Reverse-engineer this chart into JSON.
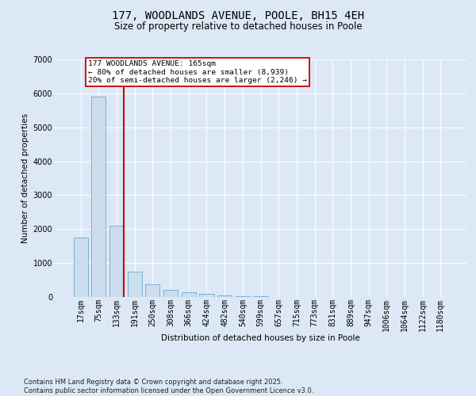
{
  "title_line1": "177, WOODLANDS AVENUE, POOLE, BH15 4EH",
  "title_line2": "Size of property relative to detached houses in Poole",
  "xlabel": "Distribution of detached houses by size in Poole",
  "ylabel": "Number of detached properties",
  "categories": [
    "17sqm",
    "75sqm",
    "133sqm",
    "191sqm",
    "250sqm",
    "308sqm",
    "366sqm",
    "424sqm",
    "482sqm",
    "540sqm",
    "599sqm",
    "657sqm",
    "715sqm",
    "773sqm",
    "831sqm",
    "889sqm",
    "947sqm",
    "1006sqm",
    "1064sqm",
    "1122sqm",
    "1180sqm"
  ],
  "values": [
    1750,
    5900,
    2100,
    750,
    380,
    210,
    140,
    95,
    55,
    28,
    12,
    7,
    4,
    3,
    2,
    1,
    1,
    1,
    0,
    0,
    0
  ],
  "bar_color": "#ccdded",
  "bar_edge_color": "#6aacce",
  "vline_color": "#cc0000",
  "annotation_text": "177 WOODLANDS AVENUE: 165sqm\n← 80% of detached houses are smaller (8,939)\n20% of semi-detached houses are larger (2,246) →",
  "annotation_box_color": "#ffffff",
  "annotation_box_edge": "#cc0000",
  "ylim": [
    0,
    7000
  ],
  "yticks": [
    0,
    1000,
    2000,
    3000,
    4000,
    5000,
    6000,
    7000
  ],
  "bg_color": "#dce8f5",
  "plot_bg_color": "#dce8f5",
  "footer": "Contains HM Land Registry data © Crown copyright and database right 2025.\nContains public sector information licensed under the Open Government Licence v3.0.",
  "title_fontsize": 10,
  "subtitle_fontsize": 8.5,
  "axis_label_fontsize": 7.5,
  "tick_fontsize": 7,
  "footer_fontsize": 6
}
